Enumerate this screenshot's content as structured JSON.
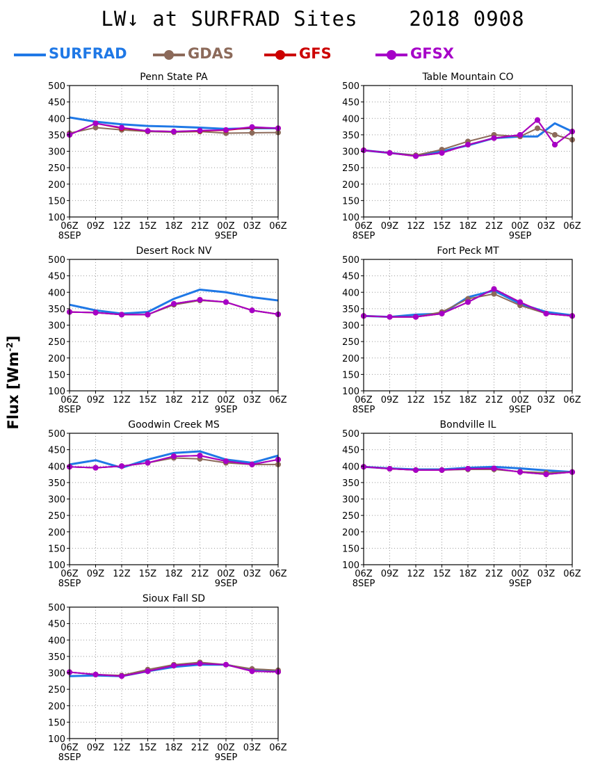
{
  "title": "LW↓ at SURFRAD Sites    2018 0908",
  "ylabel_main": "Flux [Wm",
  "ylabel_sup": "-2",
  "ylabel_end": "]",
  "colors": {
    "SURFRAD": "#1f78e6",
    "GDAS": "#8c6a5a",
    "GFS": "#cc0000",
    "GFSX": "#a600c8"
  },
  "legend": [
    {
      "name": "SURFRAD",
      "color": "#1f78e6",
      "marker": "none"
    },
    {
      "name": "GDAS",
      "color": "#8c6a5a",
      "marker": "dot"
    },
    {
      "name": "GFS",
      "color": "#cc0000",
      "marker": "dot"
    },
    {
      "name": "GFSX",
      "color": "#a600c8",
      "marker": "dot"
    }
  ],
  "x_ticks": [
    "06Z",
    "09Z",
    "12Z",
    "15Z",
    "18Z",
    "21Z",
    "00Z",
    "03Z",
    "06Z"
  ],
  "x_date_labels": [
    {
      "tick": 0,
      "text": "8SEP"
    },
    {
      "tick": 6,
      "text": "9SEP"
    }
  ],
  "chart_data": [
    {
      "type": "line",
      "title": "Penn State PA",
      "x_hours": [
        0,
        3,
        6,
        9,
        12,
        15,
        18,
        21,
        24
      ],
      "ylim": [
        100,
        500
      ],
      "yticks": [
        100,
        150,
        200,
        250,
        300,
        350,
        400,
        450,
        500
      ],
      "grid": true,
      "series": [
        {
          "name": "SURFRAD",
          "values": [
            403,
            390,
            382,
            377,
            375,
            372,
            368,
            370,
            370
          ]
        },
        {
          "name": "GDAS",
          "values": [
            355,
            372,
            365,
            360,
            358,
            360,
            355,
            356,
            357
          ]
        },
        {
          "name": "GFS",
          "values": [
            350,
            385,
            370,
            362,
            360,
            362,
            364,
            372,
            370
          ]
        },
        {
          "name": "GFSX",
          "values": [
            350,
            385,
            372,
            362,
            360,
            363,
            365,
            374,
            370
          ]
        }
      ]
    },
    {
      "type": "line",
      "title": "Table Mountain CO",
      "x_hours": [
        0,
        3,
        6,
        9,
        12,
        15,
        18,
        20,
        22,
        24
      ],
      "ylim": [
        100,
        500
      ],
      "yticks": [
        100,
        150,
        200,
        250,
        300,
        350,
        400,
        450,
        500
      ],
      "grid": true,
      "series": [
        {
          "name": "SURFRAD",
          "values": [
            303,
            295,
            287,
            300,
            318,
            340,
            345,
            345,
            385,
            360
          ]
        },
        {
          "name": "GDAS",
          "values": [
            303,
            295,
            288,
            305,
            330,
            350,
            345,
            370,
            350,
            335
          ]
        },
        {
          "name": "GFS",
          "values": [
            303,
            295,
            285,
            295,
            320,
            340,
            350,
            395,
            320,
            360
          ]
        },
        {
          "name": "GFSX",
          "values": [
            303,
            295,
            285,
            295,
            320,
            340,
            350,
            395,
            320,
            360
          ]
        }
      ]
    },
    {
      "type": "line",
      "title": "Desert Rock NV",
      "x_hours": [
        0,
        3,
        6,
        9,
        12,
        15,
        18,
        21,
        24
      ],
      "ylim": [
        100,
        500
      ],
      "yticks": [
        100,
        150,
        200,
        250,
        300,
        350,
        400,
        450,
        500
      ],
      "grid": true,
      "series": [
        {
          "name": "SURFRAD",
          "values": [
            362,
            345,
            335,
            340,
            380,
            408,
            400,
            385,
            375
          ]
        },
        {
          "name": "GDAS",
          "values": [
            340,
            338,
            332,
            332,
            362,
            375,
            370,
            345,
            333
          ]
        },
        {
          "name": "GFS",
          "values": [
            340,
            338,
            332,
            332,
            365,
            377,
            370,
            345,
            333
          ]
        },
        {
          "name": "GFSX",
          "values": [
            340,
            338,
            332,
            332,
            365,
            377,
            370,
            345,
            333
          ]
        }
      ]
    },
    {
      "type": "line",
      "title": "Fort Peck MT",
      "x_hours": [
        0,
        3,
        6,
        9,
        12,
        15,
        18,
        21,
        24
      ],
      "ylim": [
        100,
        500
      ],
      "yticks": [
        100,
        150,
        200,
        250,
        300,
        350,
        400,
        450,
        500
      ],
      "grid": true,
      "series": [
        {
          "name": "SURFRAD",
          "values": [
            328,
            325,
            332,
            335,
            385,
            405,
            365,
            340,
            330
          ]
        },
        {
          "name": "GDAS",
          "values": [
            328,
            325,
            325,
            340,
            380,
            395,
            360,
            335,
            328
          ]
        },
        {
          "name": "GFS",
          "values": [
            328,
            325,
            325,
            335,
            370,
            410,
            370,
            335,
            328
          ]
        },
        {
          "name": "GFSX",
          "values": [
            328,
            325,
            325,
            335,
            370,
            410,
            370,
            335,
            328
          ]
        }
      ]
    },
    {
      "type": "line",
      "title": "Goodwin Creek MS",
      "x_hours": [
        0,
        3,
        6,
        9,
        12,
        15,
        18,
        21,
        24
      ],
      "ylim": [
        100,
        500
      ],
      "yticks": [
        100,
        150,
        200,
        250,
        300,
        350,
        400,
        450,
        500
      ],
      "grid": true,
      "series": [
        {
          "name": "SURFRAD",
          "values": [
            405,
            418,
            395,
            420,
            440,
            445,
            420,
            410,
            432
          ]
        },
        {
          "name": "GDAS",
          "values": [
            398,
            395,
            400,
            410,
            425,
            422,
            410,
            405,
            405
          ]
        },
        {
          "name": "GFS",
          "values": [
            398,
            395,
            400,
            410,
            430,
            432,
            415,
            405,
            420
          ]
        },
        {
          "name": "GFSX",
          "values": [
            398,
            395,
            400,
            410,
            430,
            432,
            415,
            405,
            420
          ]
        }
      ]
    },
    {
      "type": "line",
      "title": "Bondville IL",
      "x_hours": [
        0,
        3,
        6,
        9,
        12,
        15,
        18,
        21,
        24
      ],
      "ylim": [
        100,
        500
      ],
      "yticks": [
        100,
        150,
        200,
        250,
        300,
        350,
        400,
        450,
        500
      ],
      "grid": true,
      "series": [
        {
          "name": "SURFRAD",
          "values": [
            398,
            393,
            390,
            390,
            395,
            398,
            393,
            387,
            382
          ]
        },
        {
          "name": "GDAS",
          "values": [
            398,
            392,
            388,
            388,
            390,
            390,
            383,
            380,
            382
          ]
        },
        {
          "name": "GFS",
          "values": [
            398,
            392,
            388,
            388,
            392,
            393,
            382,
            375,
            382
          ]
        },
        {
          "name": "GFSX",
          "values": [
            398,
            392,
            388,
            388,
            392,
            393,
            382,
            375,
            382
          ]
        }
      ]
    },
    {
      "type": "line",
      "title": "Sioux Fall SD",
      "x_hours": [
        0,
        3,
        6,
        9,
        12,
        15,
        18,
        21,
        24
      ],
      "ylim": [
        100,
        500
      ],
      "yticks": [
        100,
        150,
        200,
        250,
        300,
        350,
        400,
        450,
        500
      ],
      "grid": true,
      "series": [
        {
          "name": "SURFRAD",
          "values": [
            290,
            292,
            290,
            305,
            318,
            325,
            325,
            308,
            305
          ]
        },
        {
          "name": "GDAS",
          "values": [
            302,
            295,
            292,
            310,
            325,
            332,
            325,
            312,
            308
          ]
        },
        {
          "name": "GFS",
          "values": [
            302,
            295,
            290,
            305,
            322,
            328,
            325,
            305,
            303
          ]
        },
        {
          "name": "GFSX",
          "values": [
            302,
            295,
            290,
            305,
            322,
            328,
            325,
            305,
            303
          ]
        }
      ]
    }
  ]
}
